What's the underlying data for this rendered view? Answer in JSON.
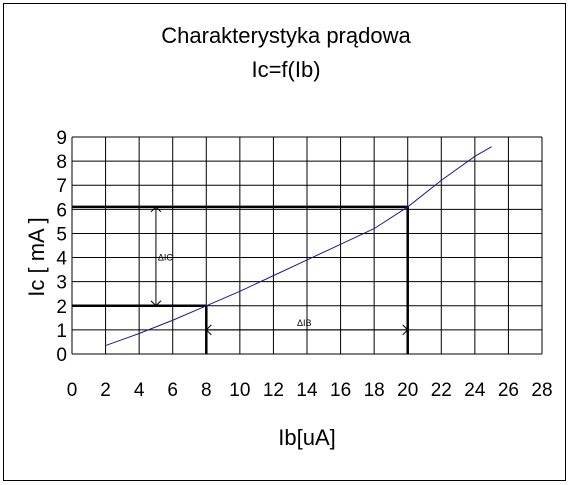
{
  "chart_data": {
    "type": "line",
    "title": "Charakterystyka prądowa",
    "subtitle": "Ic=f(Ib)",
    "xlabel": "Ib[uA]",
    "ylabel": "Ic [ mA ]",
    "xlim": [
      0,
      28
    ],
    "ylim": [
      0,
      9
    ],
    "x_ticks": [
      0,
      2,
      4,
      6,
      8,
      10,
      12,
      14,
      16,
      18,
      20,
      22,
      24,
      26,
      28
    ],
    "y_ticks": [
      0,
      1,
      2,
      3,
      4,
      5,
      6,
      7,
      8,
      9
    ],
    "grid": true,
    "series": [
      {
        "color": "#1a1a8c",
        "x": [
          2,
          4,
          6,
          8,
          10,
          12,
          14,
          16,
          18,
          20,
          22,
          24,
          25
        ],
        "y": [
          0.35,
          0.85,
          1.4,
          2.0,
          2.6,
          3.25,
          3.9,
          4.55,
          5.2,
          6.1,
          7.2,
          8.2,
          8.6
        ]
      }
    ],
    "annotations": {
      "operating_point_lines": [
        {
          "from": [
            8,
            0
          ],
          "to": [
            8,
            2.0
          ]
        },
        {
          "from": [
            0,
            2.0
          ],
          "to": [
            8,
            2.0
          ]
        },
        {
          "from": [
            20,
            0
          ],
          "to": [
            20,
            6.1
          ]
        },
        {
          "from": [
            0,
            6.1
          ],
          "to": [
            20,
            6.1
          ]
        }
      ],
      "delta_ic": {
        "label": "ΔIC",
        "x": 5,
        "y_from": 2.0,
        "y_to": 6.1
      },
      "delta_ib": {
        "label": "ΔIB",
        "y": 1.0,
        "x_from": 8,
        "x_to": 20
      }
    }
  }
}
